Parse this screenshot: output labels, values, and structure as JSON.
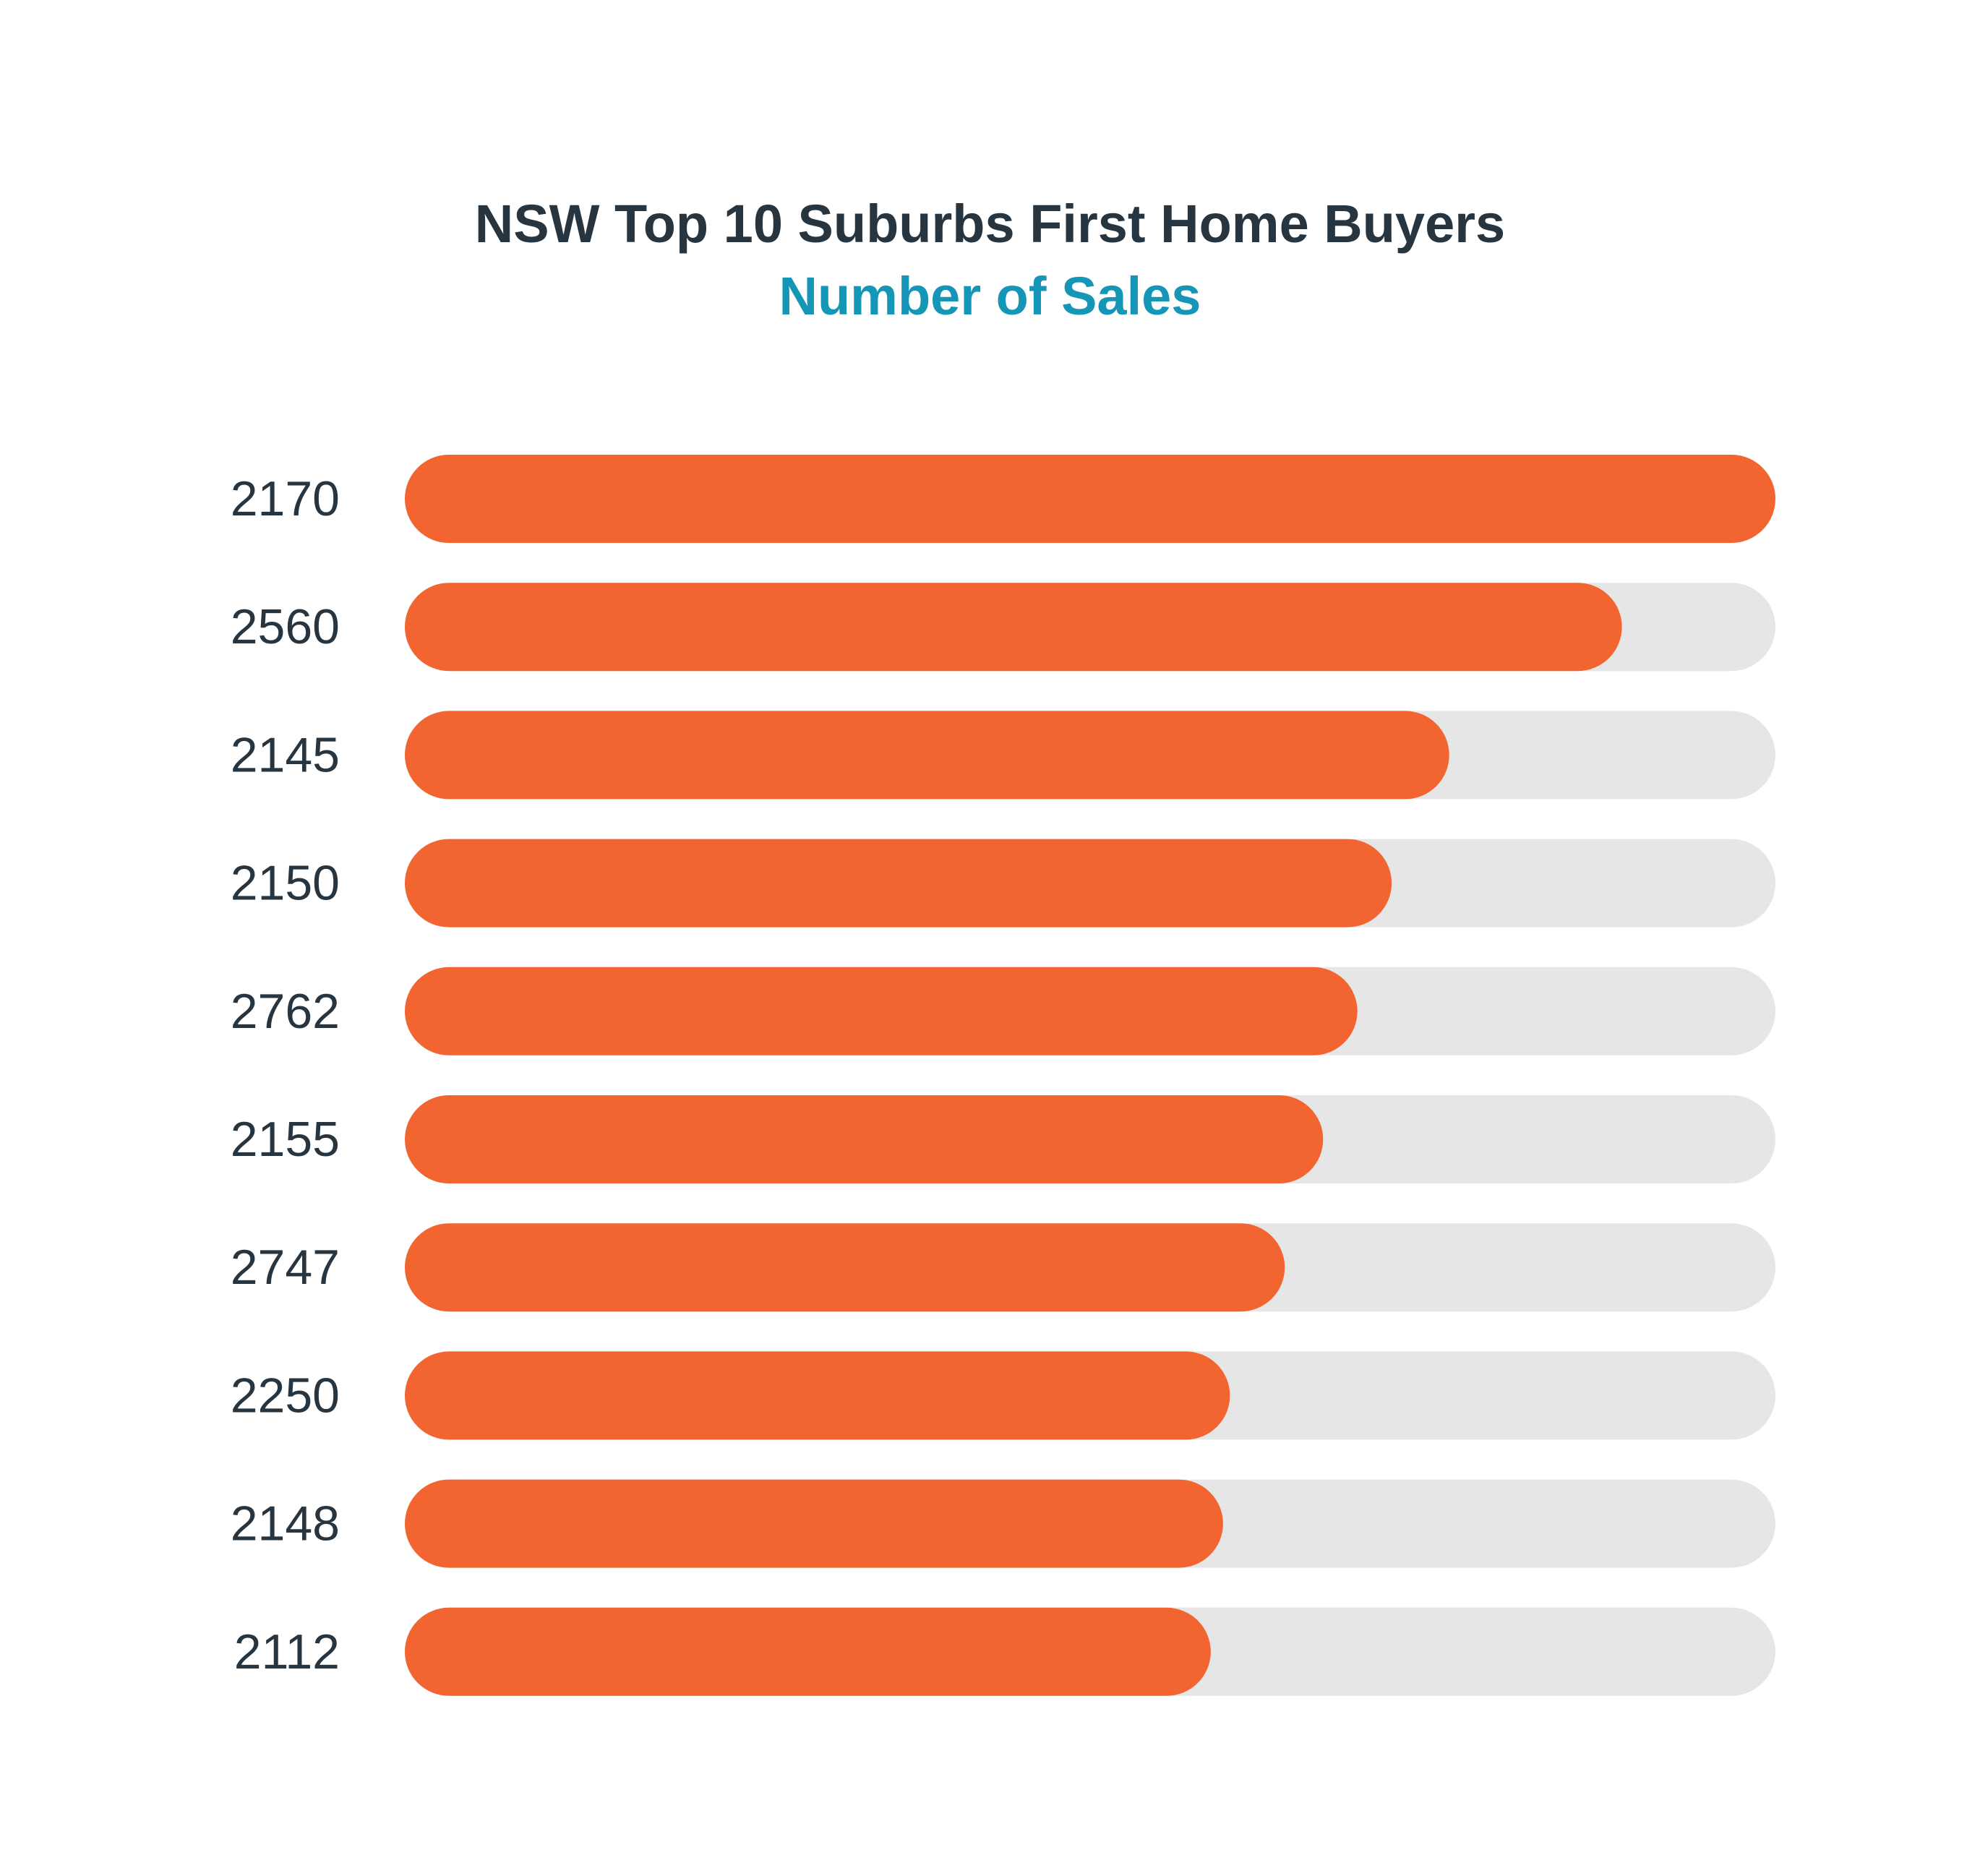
{
  "chart_data": {
    "type": "bar",
    "orientation": "horizontal",
    "title": "NSW Top 10 Suburbs First Home Buyers",
    "subtitle": "Number of Sales",
    "categories": [
      "2170",
      "2560",
      "2145",
      "2150",
      "2762",
      "2155",
      "2747",
      "2250",
      "2148",
      "2112"
    ],
    "values": [
      100,
      88.8,
      76.2,
      72,
      69.5,
      67,
      64.2,
      60.2,
      59.7,
      58.8
    ],
    "xlim": [
      0,
      100
    ],
    "grid": false,
    "legend": "none",
    "colors": {
      "bar": "#f26531",
      "track": "#e6e6e6",
      "title": "#273540",
      "subtitle": "#1596b6",
      "label": "#273540"
    }
  }
}
